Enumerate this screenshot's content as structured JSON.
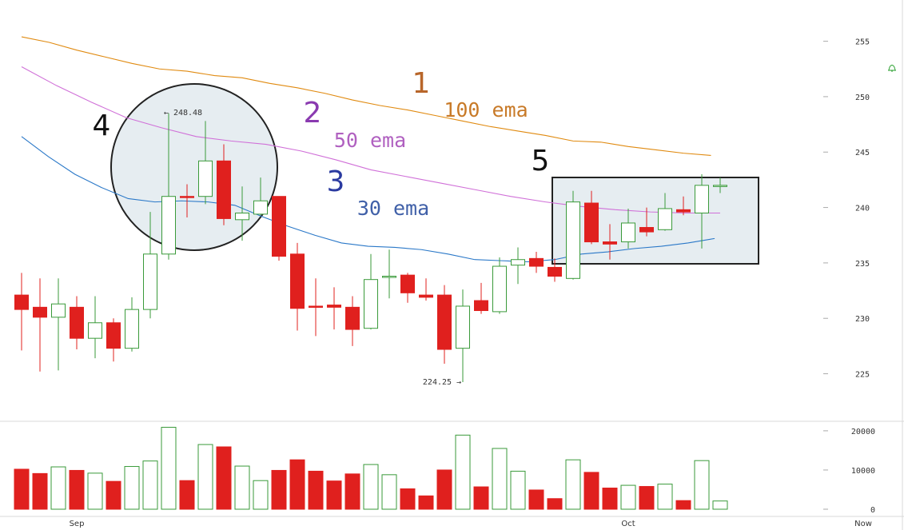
{
  "chart_data": {
    "type": "candlestick",
    "x_ticks": [
      "Sep",
      "Oct",
      "Now"
    ],
    "y_ticks": [
      255,
      250,
      245,
      240,
      235,
      230,
      225
    ],
    "ylim": [
      221,
      258
    ],
    "volume_ticks": [
      20000,
      10000,
      0
    ],
    "volume_ylim": [
      0,
      21000
    ],
    "colors": {
      "up": "#3a9a3a",
      "down": "#e0201e",
      "ema100": "#e08a10",
      "ema50": "#d070d8",
      "ema30": "#2a78c8",
      "grid": "#e6e6e6",
      "annot_fill": "#c8d8e0",
      "annot_stroke": "#222222"
    },
    "candles": [
      {
        "o": 232.1,
        "h": 234.1,
        "l": 227.1,
        "c": 230.8,
        "v": 10200
      },
      {
        "o": 231.0,
        "h": 233.6,
        "l": 225.2,
        "c": 230.1,
        "v": 9100
      },
      {
        "o": 230.1,
        "h": 233.6,
        "l": 225.3,
        "c": 231.3,
        "v": 10800
      },
      {
        "o": 231.0,
        "h": 232.0,
        "l": 227.2,
        "c": 228.2,
        "v": 9900
      },
      {
        "o": 228.2,
        "h": 232.0,
        "l": 226.4,
        "c": 229.6,
        "v": 9200
      },
      {
        "o": 229.6,
        "h": 230.0,
        "l": 226.1,
        "c": 227.3,
        "v": 7100
      },
      {
        "o": 227.3,
        "h": 231.9,
        "l": 227.0,
        "c": 230.8,
        "v": 10900
      },
      {
        "o": 230.8,
        "h": 239.6,
        "l": 230.0,
        "c": 235.8,
        "v": 12300
      },
      {
        "o": 235.8,
        "h": 248.5,
        "l": 235.3,
        "c": 241.0,
        "v": 20900
      },
      {
        "o": 241.0,
        "h": 242.1,
        "l": 239.1,
        "c": 240.9,
        "v": 7300
      },
      {
        "o": 241.0,
        "h": 247.8,
        "l": 240.3,
        "c": 244.2,
        "v": 16500
      },
      {
        "o": 244.2,
        "h": 245.7,
        "l": 238.4,
        "c": 239.0,
        "v": 15900
      },
      {
        "o": 238.9,
        "h": 241.9,
        "l": 237.0,
        "c": 239.5,
        "v": 11000
      },
      {
        "o": 239.4,
        "h": 242.7,
        "l": 239.3,
        "c": 240.6,
        "v": 7300
      },
      {
        "o": 241.0,
        "h": 241.0,
        "l": 235.2,
        "c": 235.6,
        "v": 9900
      },
      {
        "o": 235.8,
        "h": 236.8,
        "l": 228.9,
        "c": 230.9,
        "v": 12600
      },
      {
        "o": 231.1,
        "h": 233.6,
        "l": 228.4,
        "c": 231.0,
        "v": 9700
      },
      {
        "o": 231.2,
        "h": 232.8,
        "l": 229.0,
        "c": 231.0,
        "v": 7200
      },
      {
        "o": 231.0,
        "h": 232.0,
        "l": 227.5,
        "c": 229.0,
        "v": 9000
      },
      {
        "o": 229.1,
        "h": 235.8,
        "l": 229.0,
        "c": 233.5,
        "v": 11400
      },
      {
        "o": 233.8,
        "h": 236.2,
        "l": 231.8,
        "c": 233.8,
        "v": 8800
      },
      {
        "o": 233.9,
        "h": 234.1,
        "l": 231.4,
        "c": 232.3,
        "v": 5200
      },
      {
        "o": 232.1,
        "h": 233.6,
        "l": 231.6,
        "c": 231.9,
        "v": 3400
      },
      {
        "o": 232.1,
        "h": 233.0,
        "l": 225.9,
        "c": 227.2,
        "v": 10000
      },
      {
        "o": 227.3,
        "h": 232.6,
        "l": 224.25,
        "c": 231.1,
        "v": 18900
      },
      {
        "o": 231.6,
        "h": 233.2,
        "l": 230.4,
        "c": 230.7,
        "v": 5700
      },
      {
        "o": 230.6,
        "h": 235.5,
        "l": 230.4,
        "c": 234.7,
        "v": 15500
      },
      {
        "o": 234.8,
        "h": 236.4,
        "l": 233.1,
        "c": 235.3,
        "v": 9700
      },
      {
        "o": 235.4,
        "h": 236.0,
        "l": 234.1,
        "c": 234.7,
        "v": 4900
      },
      {
        "o": 234.6,
        "h": 235.4,
        "l": 233.3,
        "c": 233.8,
        "v": 2700
      },
      {
        "o": 233.6,
        "h": 241.5,
        "l": 233.5,
        "c": 240.5,
        "v": 12600
      },
      {
        "o": 240.4,
        "h": 241.5,
        "l": 236.7,
        "c": 236.9,
        "v": 9400
      },
      {
        "o": 236.9,
        "h": 238.5,
        "l": 235.3,
        "c": 236.7,
        "v": 5400
      },
      {
        "o": 236.9,
        "h": 239.9,
        "l": 236.3,
        "c": 238.6,
        "v": 6100
      },
      {
        "o": 238.2,
        "h": 240.0,
        "l": 237.4,
        "c": 237.8,
        "v": 5800
      },
      {
        "o": 238.0,
        "h": 241.3,
        "l": 237.9,
        "c": 239.9,
        "v": 6400
      },
      {
        "o": 239.8,
        "h": 241.0,
        "l": 239.3,
        "c": 239.6,
        "v": 2200
      },
      {
        "o": 239.5,
        "h": 243.0,
        "l": 236.3,
        "c": 242.0,
        "v": 12400
      },
      {
        "o": 242.0,
        "h": 242.7,
        "l": 241.3,
        "c": 242.0,
        "v": 2100
      }
    ],
    "ema100": [
      255.4,
      254.9,
      254.2,
      253.6,
      253.0,
      252.5,
      252.3,
      251.9,
      251.7,
      251.2,
      250.8,
      250.3,
      249.7,
      249.2,
      248.8,
      248.3,
      247.8,
      247.3,
      246.9,
      246.5,
      246.0,
      245.9,
      245.5,
      245.2,
      244.9,
      244.7
    ],
    "ema100_start": 0,
    "ema100_step": 1.5,
    "ema50": [
      252.7,
      251.0,
      249.5,
      248.1,
      247.2,
      246.4,
      246.0,
      245.7,
      245.1,
      244.3,
      243.4,
      242.8,
      242.2,
      241.6,
      241.0,
      240.5,
      240.1,
      239.8,
      239.6,
      239.5,
      239.5
    ],
    "ema50_start": 0,
    "ema50_step": 1.9,
    "ema30": [
      246.4,
      244.6,
      243.0,
      241.8,
      240.8,
      240.5,
      240.6,
      240.5,
      240.2,
      239.2,
      238.3,
      237.5,
      236.8,
      236.5,
      236.4,
      236.2,
      235.8,
      235.3,
      235.2,
      235.1,
      235.3,
      235.8,
      236.0,
      236.3,
      236.5,
      236.8,
      237.2
    ],
    "ema30_start": 0,
    "ema30_step": 1.45,
    "annotations": {
      "price_high": "← 248.48",
      "price_low": "224.25 →",
      "num1": "1",
      "num2": "2",
      "num3": "3",
      "num4": "4",
      "num5": "5",
      "ema100_label": "100 ema",
      "ema50_label": "50 ema",
      "ema30_label": "30 ema"
    }
  }
}
